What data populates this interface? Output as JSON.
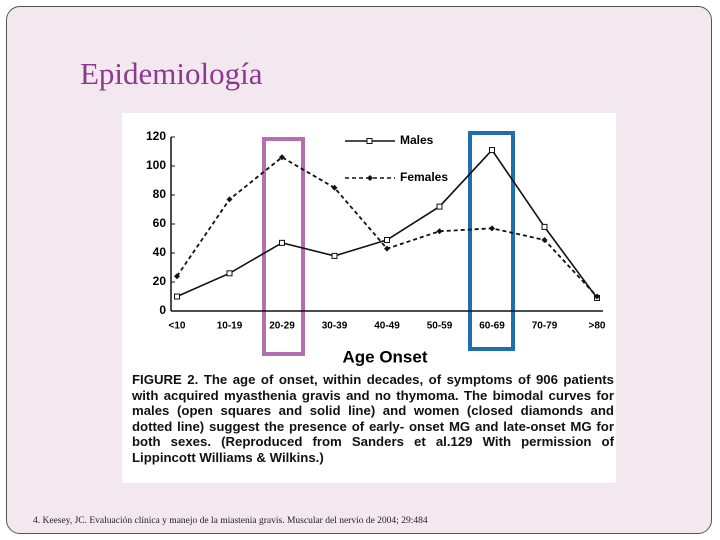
{
  "slide_title": "Epidemiología",
  "footnote": "4. Keesey, JC. Evaluación clínica y manejo de la miastenia gravis. Muscular del nervio de 2004; 29:484",
  "chart_data": {
    "type": "line",
    "x_label": "Age Onset",
    "caption": "FIGURE 2. The age of onset, within decades, of symptoms of 906 patients with acquired myasthenia gravis and no thymoma. The bimodal curves for males (open squares and solid line) and women (closed diamonds and dotted line) suggest the presence of early- onset MG and late-onset MG for both sexes. (Reproduced from Sanders et al.129 With permission of Lippincott Williams & Wilkins.)",
    "categories": [
      "<10",
      "10-19",
      "20-29",
      "30-39",
      "40-49",
      "50-59",
      "60-69",
      "70-79",
      ">80"
    ],
    "series": [
      {
        "name": "Males",
        "color": "#111111",
        "values": [
          10,
          26,
          47,
          38,
          49,
          72,
          111,
          58,
          9
        ]
      },
      {
        "name": "Females",
        "color": "#111111",
        "values": [
          24,
          77,
          106,
          85,
          43,
          55,
          57,
          49,
          10
        ]
      }
    ],
    "ylim": [
      0,
      120
    ],
    "yticks": [
      0,
      20,
      40,
      60,
      80,
      100,
      120
    ],
    "grid": false
  }
}
